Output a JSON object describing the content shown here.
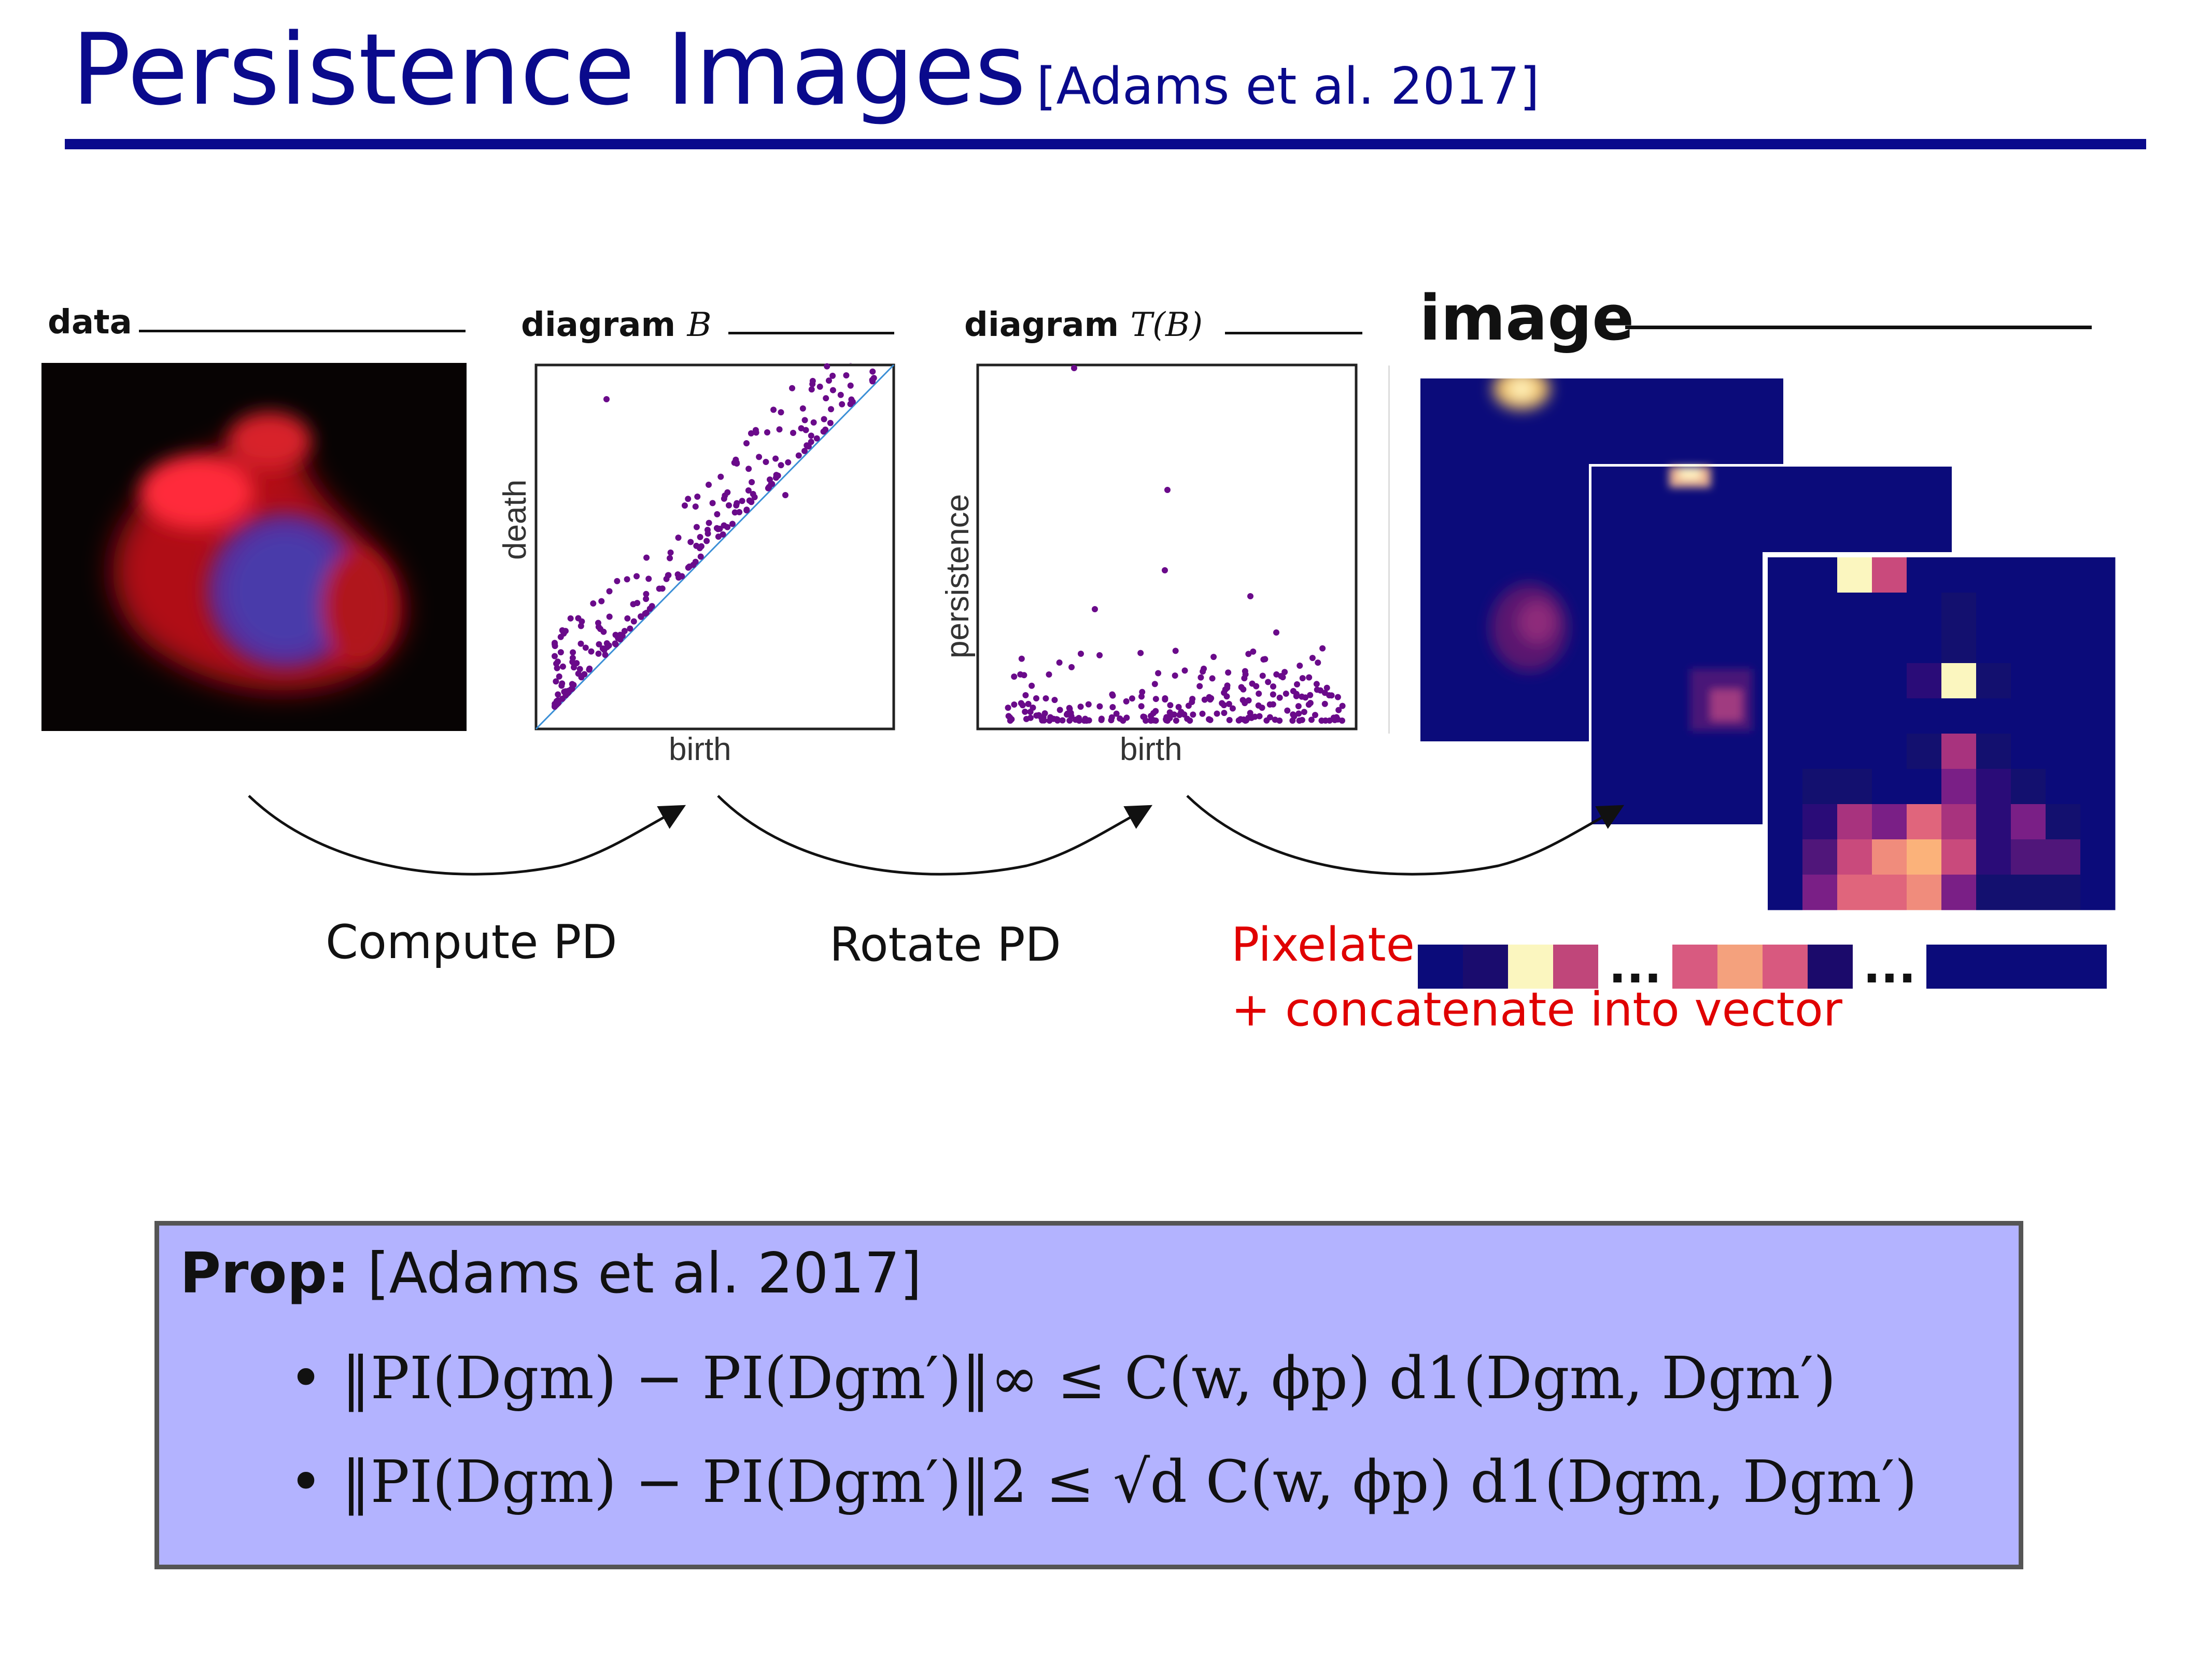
{
  "slide": {
    "title": "Persistence Images",
    "citation": "[Adams et al. 2017]"
  },
  "panels": {
    "data_label": "data",
    "diagram_b_label": "diagram",
    "diagram_b_var": "B",
    "diagram_tb_label": "diagram",
    "diagram_tb_var": "T(B)",
    "image_label": "image"
  },
  "plots": {
    "plot1_xlabel": "birth",
    "plot1_ylabel": "death",
    "plot2_xlabel": "birth",
    "plot2_ylabel": "persistence"
  },
  "steps": {
    "compute": "Compute PD",
    "rotate": "Rotate PD",
    "pixelate": "Pixelate",
    "concat": "+ concatenate into vector",
    "ellipsis": "..."
  },
  "prop": {
    "label": "Prop:",
    "citation": "[Adams et al. 2017]",
    "line1": "‖PI(Dgm) − PI(Dgm′)‖∞ ≤ C(w, ϕp) d1(Dgm, Dgm′)",
    "line2": "‖PI(Dgm) − PI(Dgm′)‖2 ≤ √d C(w, ϕp) d1(Dgm, Dgm′)"
  },
  "colors": {
    "title": "#0a0a8c",
    "prop_background": "#b3b3ff",
    "point": "#6a0a8a",
    "diagonal": "#3b8fd6",
    "accent_red": "#e00000",
    "heatmap_bg": "#0b0b7a"
  },
  "vector_colors": [
    "#0b0b7a",
    "#1a0c6e",
    "#fbf6bf",
    "#c0467a",
    "#d85a80",
    "#f4a17d",
    "#d8597f",
    "#1b0a6b",
    "#0b0b7a"
  ]
}
